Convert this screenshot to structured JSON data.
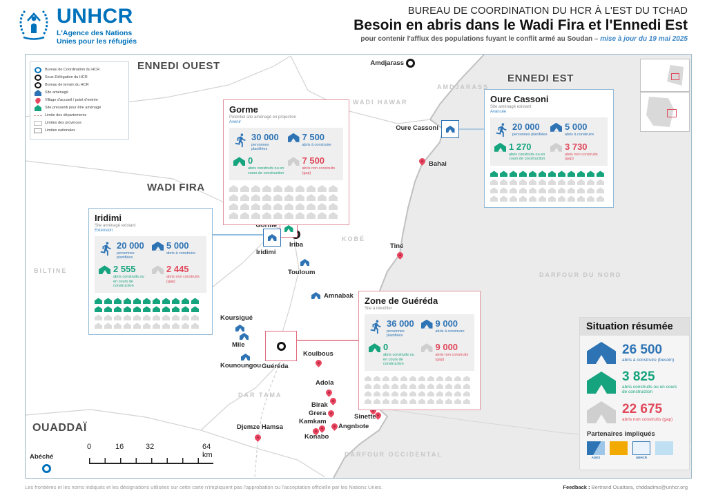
{
  "header": {
    "org_name": "UNHCR",
    "org_tagline_1": "L'Agence des Nations",
    "org_tagline_2": "Unies pour les réfugiés",
    "kicker": "BUREAU DE COORDINATION DU HCR À L'EST DU TCHAD",
    "title": "Besoin en abris dans le Wadi Fira et l'Ennedi Est",
    "subtitle": "pour contenir l'afflux des populations fuyant le conflit armé au Soudan – ",
    "subtitle_update": "mise à jour du 19 mai 2025"
  },
  "legend": {
    "items": [
      {
        "icon": "circle-blue",
        "label": "Bureau de Coordination du HCR"
      },
      {
        "icon": "circle-black",
        "label": "Sous-Délégation du HCR"
      },
      {
        "icon": "circle-black",
        "label": "Bureau de terrain du HCR"
      },
      {
        "icon": "shelter-blue",
        "label": "Site aménagé"
      },
      {
        "icon": "pin-red",
        "label": "Village d'accueil / point d'entrée"
      },
      {
        "icon": "shelter-green",
        "label": "Site pressenti pour être aménagé"
      },
      {
        "icon": "line-dashed",
        "label": "Limite des départements"
      },
      {
        "icon": "rect-thin",
        "label": "Limites des provinces"
      },
      {
        "icon": "rect-thick",
        "label": "Limites nationales"
      }
    ]
  },
  "regions": {
    "ennedi_ouest": "ENNEDI OUEST",
    "ennedi_est": "ENNEDI EST",
    "wadi_fira": "WADI FIRA",
    "ouaddai": "OUADDAÏ"
  },
  "departments": {
    "amdjarass": "AMDJARASS",
    "wadi_hawar": "WADI HAWAR",
    "kobe": "KOBÉ",
    "biltine": "BILTINE",
    "dar_tama": "DAR TAMA",
    "darfour_nord": "DARFOUR DU NORD",
    "darfour_occidental": "DARFOUR OCCIDENTAL"
  },
  "towns": {
    "amdjarass": "Amdjarass",
    "oure_cassoni": "Oure Cassoni",
    "bahai": "Bahai",
    "tine": "Tiné",
    "iriba": "Iriba",
    "gorme": "Gorme",
    "iridimi": "Iridimi",
    "touloum": "Touloum",
    "amnabak": "Amnabak",
    "koursigue": "Koursigué",
    "mile": "Mile",
    "kounoungou": "Kounoungou",
    "guereda": "Guéréda",
    "koulbous": "Koulbous",
    "adola": "Adola",
    "birak": "Birak",
    "grera": "Grera",
    "kamkam": "Kamkam",
    "sinette": "Sinette",
    "angnbote": "Angnbote",
    "konabo": "Konabo",
    "djemze_hamsa": "Djemze Hamsa",
    "abeche": "Abéché"
  },
  "stat_labels": {
    "planned": "personnes planifiées",
    "need": "abris à construire",
    "built": "abris construits ou en cours de construction",
    "gap": "abris non construits (gap)"
  },
  "sites": {
    "gorme": {
      "name": "Gorme",
      "type": "Potentiel site aménagé en projection",
      "status": "Avenir",
      "planned": "30 000",
      "need": "7 500",
      "built": "0",
      "gap": "7 500",
      "grid": {
        "green": 0,
        "gray": 40
      }
    },
    "oure_cassoni": {
      "name": "Oure Cassoni",
      "type": "Site aménagé existant",
      "status": "Avancée",
      "planned": "20 000",
      "need": "5 000",
      "built": "1 270",
      "gap": "3 730",
      "grid": {
        "green": 12,
        "gray": 36
      }
    },
    "iridimi": {
      "name": "Iridimi",
      "type": "Site aménagé existant",
      "status": "Extension",
      "planned": "20 000",
      "need": "5 000",
      "built": "2 555",
      "gap": "2 445",
      "grid": {
        "green": 22,
        "gray": 22
      }
    },
    "guereda": {
      "name": "Zone de Guéréda",
      "type": "Site à identifier",
      "status": "",
      "planned": "36 000",
      "need": "9 000",
      "built": "0",
      "gap": "9 000",
      "grid": {
        "green": 0,
        "gray": 48
      }
    }
  },
  "summary": {
    "title": "Situation résumée",
    "need": "26 500",
    "need_label": "abris à construire (besoin)",
    "built": "3 825",
    "built_label": "abris construits ou en cours de construction",
    "gap": "22 675",
    "gap_label": "abris non construits (gap)",
    "partners_title": "Partenaires impliqués",
    "partners": [
      {
        "label": "ADES"
      },
      {
        "label": ""
      },
      {
        "label": "UNHCR"
      },
      {
        "label": ""
      }
    ]
  },
  "scalebar": {
    "v0": "0",
    "v16": "16",
    "v32": "32",
    "v64": "64 km"
  },
  "footer": {
    "disclaimer": "Les frontières et les noms indiqués et les désignations utilisées sur cette carte n'impliquent pas l'approbation ou l'acceptation officielle par les Nations Unies.",
    "feedback_label": "Feedback :",
    "feedback_value": "Bertrand Ouattara, chddadims@unhcr.org"
  },
  "colors": {
    "unhcr_blue": "#0072BC",
    "green": "#16a47e",
    "red": "#e0485a",
    "gray_icon": "#dcdcdc"
  }
}
